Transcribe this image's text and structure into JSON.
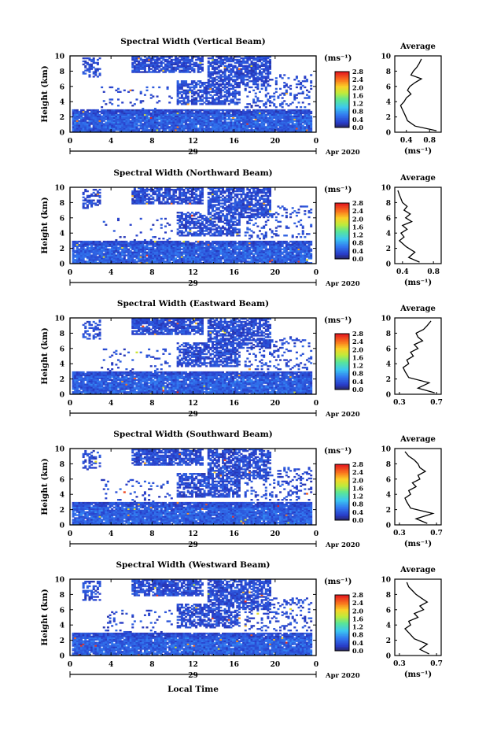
{
  "chart_data": [
    {
      "type": "heatmap",
      "title": "Spectral Width (Vertical Beam)",
      "ylabel": "Height (km)",
      "xlim": [
        0,
        24
      ],
      "ylim": [
        0,
        10
      ],
      "x_ticks": [
        "0",
        "4",
        "8",
        "12",
        "16",
        "20",
        "0"
      ],
      "y_ticks": [
        "0",
        "2",
        "4",
        "6",
        "8",
        "10"
      ],
      "date_day": "29",
      "date_label": "Apr 2020",
      "colorbar": {
        "unit": "(ms⁻¹)",
        "ticks": [
          "0.0",
          "0.4",
          "0.8",
          "1.2",
          "1.6",
          "2.0",
          "2.4",
          "2.8"
        ],
        "range": [
          0,
          2.8
        ]
      },
      "profile": {
        "title": "Average",
        "xlabel": "(ms⁻¹)",
        "xlim": [
          0.2,
          1.0
        ],
        "x_ticks": [
          "0.4",
          "0.8"
        ],
        "y_ticks": [
          "0",
          "2",
          "4",
          "6",
          "8",
          "10"
        ],
        "height_km": [
          0.2,
          0.8,
          1.5,
          2.2,
          3.0,
          3.5,
          4.0,
          4.5,
          5.0,
          5.5,
          6.0,
          6.5,
          7.0,
          7.5,
          8.0,
          8.5,
          9.0,
          9.6
        ],
        "width": [
          0.92,
          0.55,
          0.42,
          0.38,
          0.33,
          0.3,
          0.36,
          0.4,
          0.48,
          0.42,
          0.46,
          0.55,
          0.66,
          0.48,
          0.52,
          0.58,
          0.62,
          0.66
        ]
      }
    },
    {
      "type": "heatmap",
      "title": "Spectral Width (Northward Beam)",
      "ylabel": "Height (km)",
      "xlim": [
        0,
        24
      ],
      "ylim": [
        0,
        10
      ],
      "x_ticks": [
        "0",
        "4",
        "8",
        "12",
        "16",
        "20",
        "0"
      ],
      "y_ticks": [
        "0",
        "2",
        "4",
        "6",
        "8",
        "10"
      ],
      "date_day": "29",
      "date_label": "Apr 2020",
      "colorbar": {
        "unit": "(ms⁻¹)",
        "ticks": [
          "0.0",
          "0.4",
          "0.8",
          "1.2",
          "1.6",
          "2.0",
          "2.4",
          "2.8"
        ],
        "range": [
          0,
          2.8
        ]
      },
      "profile": {
        "title": "Average",
        "xlabel": "(ms⁻¹)",
        "xlim": [
          0.3,
          0.9
        ],
        "x_ticks": [
          "0.4",
          "0.8"
        ],
        "y_ticks": [
          "0",
          "2",
          "4",
          "6",
          "8",
          "10"
        ],
        "height_km": [
          0.2,
          0.8,
          1.5,
          2.2,
          3.0,
          3.5,
          4.0,
          4.5,
          5.0,
          5.5,
          6.0,
          6.5,
          7.0,
          7.5,
          8.0,
          8.5,
          9.0,
          9.6
        ],
        "width": [
          0.62,
          0.48,
          0.56,
          0.45,
          0.36,
          0.42,
          0.38,
          0.46,
          0.4,
          0.52,
          0.44,
          0.5,
          0.42,
          0.46,
          0.4,
          0.38,
          0.36,
          0.34
        ]
      }
    },
    {
      "type": "heatmap",
      "title": "Spectral Width (Eastward Beam)",
      "ylabel": "Height (km)",
      "xlim": [
        0,
        24
      ],
      "ylim": [
        0,
        10
      ],
      "x_ticks": [
        "0",
        "4",
        "8",
        "12",
        "16",
        "20",
        "0"
      ],
      "y_ticks": [
        "0",
        "2",
        "4",
        "6",
        "8",
        "10"
      ],
      "date_day": "29",
      "date_label": "Apr 2020",
      "colorbar": {
        "unit": "(ms⁻¹)",
        "ticks": [
          "0.0",
          "0.4",
          "0.8",
          "1.2",
          "1.6",
          "2.0",
          "2.4",
          "2.8"
        ],
        "range": [
          0,
          2.8
        ]
      },
      "profile": {
        "title": "Average",
        "xlabel": "",
        "xlim": [
          0.25,
          0.75
        ],
        "x_ticks": [
          "0.3",
          "0.7"
        ],
        "y_ticks": [
          "0",
          "2",
          "4",
          "6",
          "8",
          "10"
        ],
        "height_km": [
          0.2,
          0.8,
          1.5,
          2.2,
          3.0,
          3.5,
          4.0,
          4.5,
          5.0,
          5.5,
          6.0,
          6.5,
          7.0,
          7.5,
          8.0,
          8.5,
          9.0,
          9.6
        ],
        "width": [
          0.68,
          0.5,
          0.62,
          0.4,
          0.36,
          0.34,
          0.4,
          0.38,
          0.45,
          0.42,
          0.5,
          0.46,
          0.55,
          0.5,
          0.48,
          0.56,
          0.6,
          0.64
        ]
      }
    },
    {
      "type": "heatmap",
      "title": "Spectral Width (Southward Beam)",
      "ylabel": "Height (km)",
      "xlim": [
        0,
        24
      ],
      "ylim": [
        0,
        10
      ],
      "x_ticks": [
        "0",
        "4",
        "8",
        "12",
        "16",
        "20",
        "0"
      ],
      "y_ticks": [
        "0",
        "2",
        "4",
        "6",
        "8",
        "10"
      ],
      "date_day": "29",
      "date_label": "Apr 2020",
      "colorbar": {
        "unit": "(ms⁻¹)",
        "ticks": [
          "0.0",
          "0.4",
          "0.8",
          "1.2",
          "1.6",
          "2.0",
          "2.4",
          "2.8"
        ],
        "range": [
          0,
          2.8
        ]
      },
      "profile": {
        "title": "Average",
        "xlabel": "(ms⁻¹)",
        "xlim": [
          0.25,
          0.75
        ],
        "x_ticks": [
          "0.3",
          "0.7"
        ],
        "y_ticks": [
          "0",
          "2",
          "4",
          "6",
          "8",
          "10"
        ],
        "height_km": [
          0.2,
          0.8,
          1.5,
          2.2,
          3.0,
          3.5,
          4.0,
          4.5,
          5.0,
          5.5,
          6.0,
          6.5,
          7.0,
          7.5,
          8.0,
          8.5,
          9.0,
          9.6
        ],
        "width": [
          0.6,
          0.48,
          0.66,
          0.42,
          0.38,
          0.36,
          0.42,
          0.4,
          0.48,
          0.44,
          0.52,
          0.5,
          0.58,
          0.52,
          0.5,
          0.46,
          0.4,
          0.36
        ]
      }
    },
    {
      "type": "heatmap",
      "title": "Spectral Width (Westward Beam)",
      "ylabel": "Height (km)",
      "xlabel": "Local Time",
      "xlim": [
        0,
        24
      ],
      "ylim": [
        0,
        10
      ],
      "x_ticks": [
        "0",
        "4",
        "8",
        "12",
        "16",
        "20",
        "0"
      ],
      "y_ticks": [
        "0",
        "2",
        "4",
        "6",
        "8",
        "10"
      ],
      "date_day": "29",
      "date_label": "Apr 2020",
      "colorbar": {
        "unit": "(ms⁻¹)",
        "ticks": [
          "0.0",
          "0.4",
          "0.8",
          "1.2",
          "1.6",
          "2.0",
          "2.4",
          "2.8"
        ],
        "range": [
          0,
          2.8
        ]
      },
      "profile": {
        "title": "Average",
        "xlabel": "(ms⁻¹)",
        "xlim": [
          0.25,
          0.75
        ],
        "x_ticks": [
          "0.3",
          "0.7"
        ],
        "y_ticks": [
          "0",
          "2",
          "4",
          "6",
          "8",
          "10"
        ],
        "height_km": [
          0.2,
          0.8,
          1.5,
          2.2,
          3.0,
          3.5,
          4.0,
          4.5,
          5.0,
          5.5,
          6.0,
          6.5,
          7.0,
          7.5,
          8.0,
          8.5,
          9.0,
          9.6
        ],
        "width": [
          0.62,
          0.52,
          0.6,
          0.46,
          0.4,
          0.36,
          0.42,
          0.4,
          0.5,
          0.46,
          0.56,
          0.52,
          0.6,
          0.54,
          0.48,
          0.44,
          0.4,
          0.38
        ]
      }
    }
  ]
}
